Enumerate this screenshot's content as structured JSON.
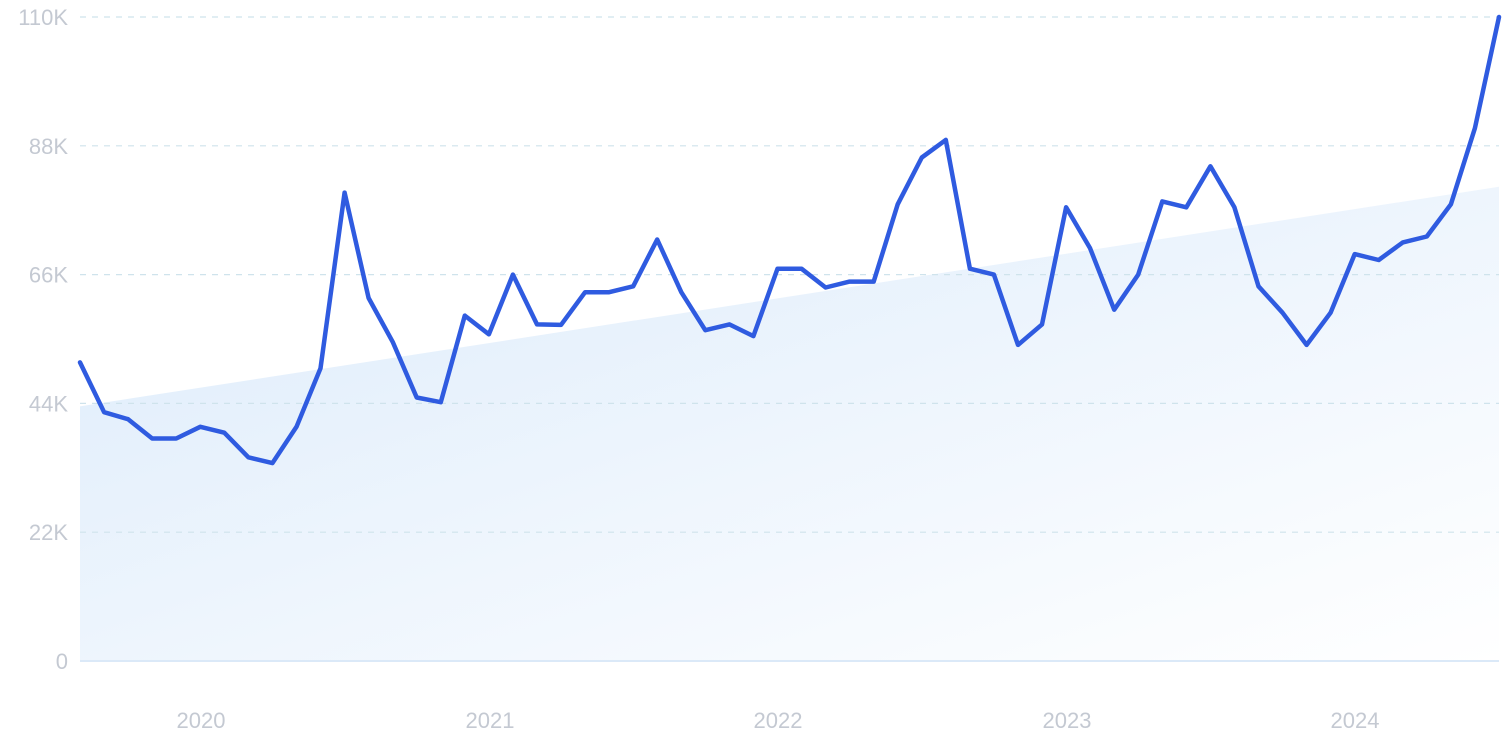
{
  "chart_data": {
    "type": "line",
    "title": "",
    "xlabel": "",
    "ylabel": "",
    "x_tick_labels": [
      "2020",
      "2021",
      "2022",
      "2023",
      "2024"
    ],
    "y_tick_labels": [
      "0",
      "22K",
      "44K",
      "66K",
      "88K",
      "110K"
    ],
    "ylim": [
      0,
      110000
    ],
    "grid": true,
    "trend_area": {
      "start": 43500,
      "end": 81000
    },
    "colors": {
      "line": "#2f5be0",
      "trend_fill": "#dcebfb",
      "grid": "#cfe3ec",
      "tick_text": "#c4c9d2"
    },
    "series": [
      {
        "values": [
          51000,
          42500,
          41300,
          38000,
          38000,
          40000,
          39000,
          34800,
          33800,
          40000,
          50000,
          80000,
          62000,
          54500,
          45000,
          44200,
          59000,
          55800,
          66000,
          57500,
          57400,
          63000,
          63000,
          64000,
          72000,
          63000,
          56500,
          57500,
          55500,
          67000,
          67000,
          63800,
          64800,
          64800,
          78000,
          86000,
          89000,
          67000,
          66000,
          54000,
          57500,
          77500,
          70500,
          60000,
          66000,
          78500,
          77500,
          84500,
          77500,
          64000,
          59500,
          54000,
          59500,
          69500,
          68500,
          71500,
          72500,
          78000,
          91000,
          110000
        ]
      }
    ]
  }
}
